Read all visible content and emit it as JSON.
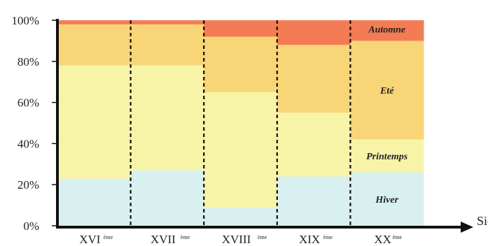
{
  "chart_data": {
    "type": "bar",
    "stacked": true,
    "normalized": true,
    "categories": [
      "XVI",
      "XVII",
      "XVIII",
      "XIX",
      "XX"
    ],
    "category_suffix": "ème",
    "series": [
      {
        "name": "Hiver",
        "color": "#d9f0f1",
        "values": [
          23,
          27,
          9,
          24,
          26
        ]
      },
      {
        "name": "Printemps",
        "color": "#f7f4a8",
        "values": [
          55,
          51,
          56,
          31,
          16
        ]
      },
      {
        "name": "Eté",
        "color": "#f8d577",
        "values": [
          20,
          20,
          27,
          33,
          48
        ]
      },
      {
        "name": "Automne",
        "color": "#f47c54",
        "values": [
          2,
          2,
          8,
          12,
          10
        ]
      }
    ],
    "y_ticks": [
      "0%",
      "20%",
      "40%",
      "60%",
      "80%",
      "100%"
    ],
    "ylim": [
      0,
      100
    ],
    "xlabel": "Siècles",
    "ylabel": "",
    "legend": "inline-right",
    "grid": false
  }
}
